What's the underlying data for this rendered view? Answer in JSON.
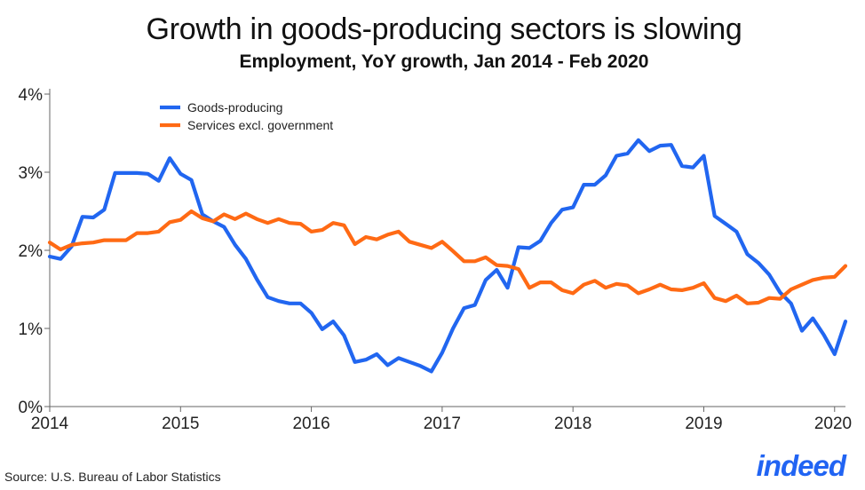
{
  "title": "Growth in goods-producing sectors is slowing",
  "subtitle": "Employment, YoY growth, Jan 2014 - Feb 2020",
  "source": "Source: U.S. Bureau of Labor Statistics",
  "brand": "indeed",
  "colors": {
    "goods": "#2166f0",
    "services": "#ff6a14",
    "axis": "#666666",
    "grid": "#bdbdbd"
  },
  "chart_data": {
    "type": "line",
    "title": "Growth in goods-producing sectors is slowing",
    "subtitle": "Employment, YoY growth, Jan 2014 - Feb 2020",
    "xlabel": "",
    "ylabel": "",
    "xlim": [
      2014,
      2020.083
    ],
    "ylim": [
      0,
      4
    ],
    "x_ticks": [
      2014,
      2015,
      2016,
      2017,
      2018,
      2019,
      2020
    ],
    "x_tick_labels": [
      "2014",
      "2015",
      "2016",
      "2017",
      "2018",
      "2019",
      "2020"
    ],
    "y_ticks": [
      0,
      1,
      2,
      3,
      4
    ],
    "y_tick_labels": [
      "0%",
      "1%",
      "2%",
      "3%",
      "4%"
    ],
    "legend_position": "top-left",
    "x": [
      2014.0,
      2014.083,
      2014.167,
      2014.25,
      2014.333,
      2014.417,
      2014.5,
      2014.583,
      2014.667,
      2014.75,
      2014.833,
      2014.917,
      2015.0,
      2015.083,
      2015.167,
      2015.25,
      2015.333,
      2015.417,
      2015.5,
      2015.583,
      2015.667,
      2015.75,
      2015.833,
      2015.917,
      2016.0,
      2016.083,
      2016.167,
      2016.25,
      2016.333,
      2016.417,
      2016.5,
      2016.583,
      2016.667,
      2016.75,
      2016.833,
      2016.917,
      2017.0,
      2017.083,
      2017.167,
      2017.25,
      2017.333,
      2017.417,
      2017.5,
      2017.583,
      2017.667,
      2017.75,
      2017.833,
      2017.917,
      2018.0,
      2018.083,
      2018.167,
      2018.25,
      2018.333,
      2018.417,
      2018.5,
      2018.583,
      2018.667,
      2018.75,
      2018.833,
      2018.917,
      2019.0,
      2019.083,
      2019.167,
      2019.25,
      2019.333,
      2019.417,
      2019.5,
      2019.583,
      2019.667,
      2019.75,
      2019.833,
      2019.917,
      2020.0,
      2020.083
    ],
    "series": [
      {
        "name": "Goods-producing",
        "color": "#2166f0",
        "values": [
          1.92,
          1.89,
          2.05,
          2.43,
          2.42,
          2.52,
          2.99,
          2.99,
          2.99,
          2.98,
          2.89,
          3.18,
          2.98,
          2.9,
          2.46,
          2.37,
          2.3,
          2.07,
          1.89,
          1.63,
          1.4,
          1.35,
          1.32,
          1.32,
          1.2,
          0.99,
          1.09,
          0.91,
          0.57,
          0.6,
          0.67,
          0.53,
          0.62,
          0.57,
          0.52,
          0.45,
          0.69,
          1.0,
          1.26,
          1.3,
          1.62,
          1.75,
          1.52,
          2.04,
          2.03,
          2.12,
          2.35,
          2.52,
          2.55,
          2.84,
          2.84,
          2.96,
          3.21,
          3.24,
          3.41,
          3.27,
          3.34,
          3.35,
          3.08,
          3.06,
          3.21,
          2.44,
          2.34,
          2.24,
          1.95,
          1.84,
          1.69,
          1.46,
          1.32,
          0.97,
          1.13,
          0.92,
          0.67,
          1.09
        ]
      },
      {
        "name": "Services excl. government",
        "color": "#ff6a14",
        "values": [
          2.1,
          2.01,
          2.07,
          2.09,
          2.1,
          2.13,
          2.13,
          2.13,
          2.22,
          2.22,
          2.24,
          2.36,
          2.39,
          2.5,
          2.41,
          2.37,
          2.46,
          2.4,
          2.47,
          2.4,
          2.35,
          2.4,
          2.35,
          2.34,
          2.24,
          2.26,
          2.35,
          2.32,
          2.08,
          2.17,
          2.14,
          2.2,
          2.24,
          2.11,
          2.07,
          2.03,
          2.11,
          1.99,
          1.86,
          1.86,
          1.91,
          1.81,
          1.8,
          1.76,
          1.52,
          1.59,
          1.59,
          1.49,
          1.45,
          1.56,
          1.61,
          1.52,
          1.57,
          1.55,
          1.45,
          1.5,
          1.56,
          1.5,
          1.49,
          1.52,
          1.58,
          1.39,
          1.35,
          1.42,
          1.32,
          1.33,
          1.39,
          1.38,
          1.5,
          1.56,
          1.62,
          1.65,
          1.66,
          1.8
        ]
      }
    ]
  }
}
